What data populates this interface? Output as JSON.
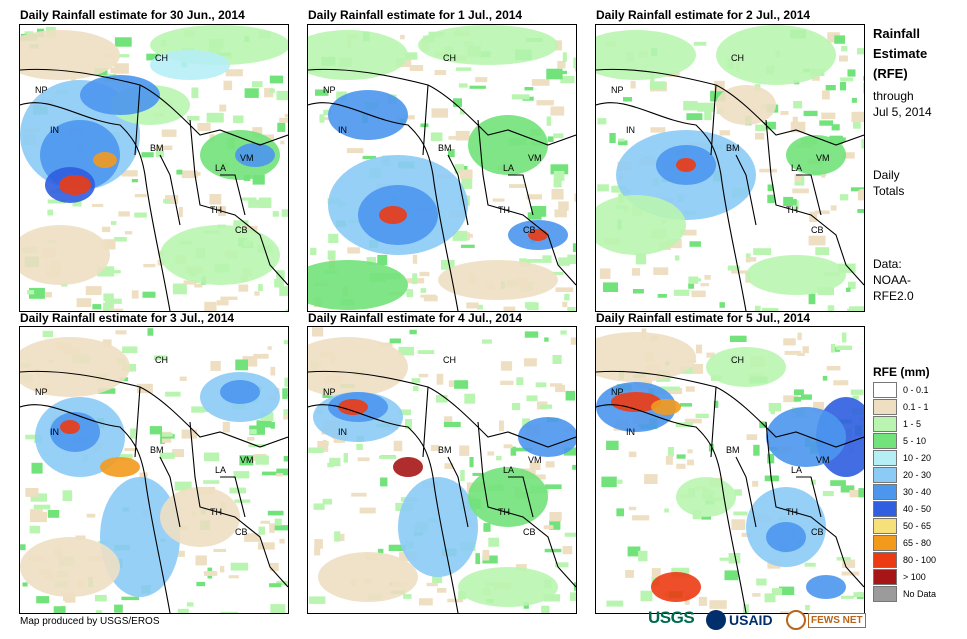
{
  "panels": [
    {
      "title": "Daily Rainfall estimate for 30 Jun., 2014"
    },
    {
      "title": "Daily Rainfall estimate for 1 Jul., 2014"
    },
    {
      "title": "Daily Rainfall estimate for 2 Jul., 2014"
    },
    {
      "title": "Daily Rainfall estimate for 3 Jul., 2014"
    },
    {
      "title": "Daily Rainfall estimate for 4 Jul., 2014"
    },
    {
      "title": "Daily Rainfall estimate for 5 Jul., 2014"
    }
  ],
  "country_labels": {
    "ch": "CH",
    "np": "NP",
    "in": "IN",
    "bm": "BM",
    "la": "LA",
    "vm": "VM",
    "th": "TH",
    "cb": "CB"
  },
  "sidebar": {
    "title_line1": "Rainfall",
    "title_line2": "Estimate",
    "title_line3": "(RFE)",
    "through": "through",
    "date": "Jul 5, 2014",
    "daily": "Daily",
    "totals": "Totals",
    "data_label": "Data:",
    "data_src1": "NOAA-",
    "data_src2": "RFE2.0"
  },
  "legend": {
    "title": "RFE (mm)",
    "items": [
      {
        "label": "0 - 0.1",
        "color": "#ffffff"
      },
      {
        "label": "0.1 - 1",
        "color": "#eedfc3"
      },
      {
        "label": "1 - 5",
        "color": "#b9f5b0"
      },
      {
        "label": "5 - 10",
        "color": "#72e27a"
      },
      {
        "label": "10 - 20",
        "color": "#b6eef6"
      },
      {
        "label": "20 - 30",
        "color": "#8ccbf6"
      },
      {
        "label": "30 - 40",
        "color": "#4d96ee"
      },
      {
        "label": "40 - 50",
        "color": "#2f5ee0"
      },
      {
        "label": "50 - 65",
        "color": "#f5e07a"
      },
      {
        "label": "65 - 80",
        "color": "#f39a1d"
      },
      {
        "label": "80 - 100",
        "color": "#ec3b13"
      },
      {
        "label": "> 100",
        "color": "#a61616"
      },
      {
        "label": "No Data",
        "color": "#9b9b9b"
      }
    ]
  },
  "credit": "Map produced by USGS/EROS",
  "logos": {
    "usgs": "USGS",
    "usaid": "USAID",
    "fews": "FEWS NET"
  }
}
